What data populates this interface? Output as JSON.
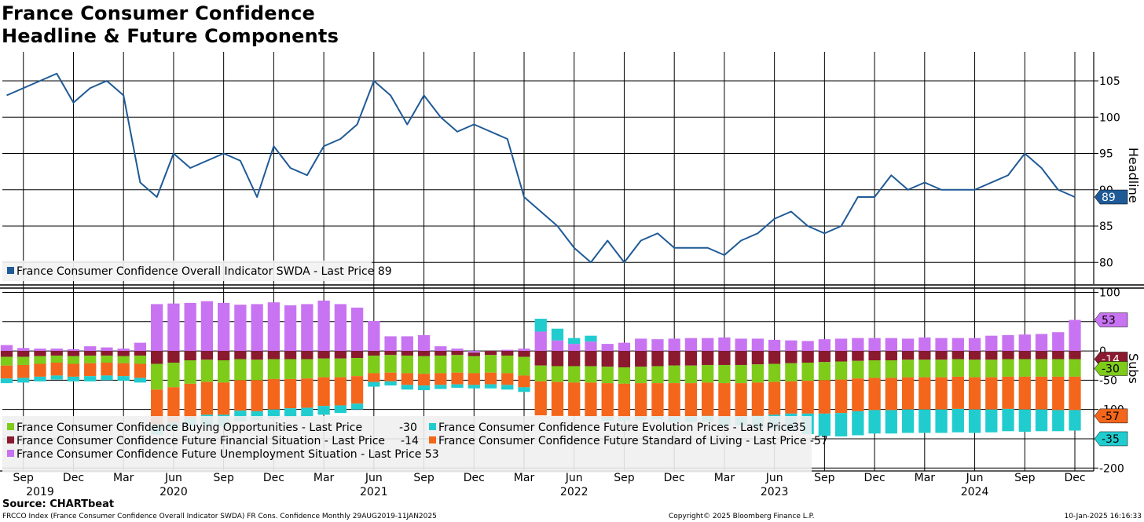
{
  "title_line1": "France Consumer Confidence",
  "title_line2": "Headline & Future Components",
  "source": "Source: CHARTbeat",
  "footer_left": "FRCCO Index (France Consumer Confidence Overall Indicator SWDA) FR Cons. Confidence  Monthly 29AUG2019-11JAN2025",
  "footer_center": "Copyright© 2025 Bloomberg Finance L.P.",
  "footer_right": "10-Jan-2025 16:16:33",
  "chart_data": [
    {
      "type": "line",
      "ylabel": "Headline",
      "ylim": [
        77,
        109
      ],
      "yticks": [
        80,
        85,
        90,
        95,
        100,
        105
      ],
      "x_start": "2019-08",
      "series": [
        {
          "name": "France Consumer Confidence Overall Indicator SWDA",
          "legend": "France Consumer Confidence Overall Indicator SWDA - Last Price 89",
          "last": "89",
          "color": "#1f5a96",
          "values": [
            103,
            104,
            105,
            106,
            102,
            104,
            105,
            103,
            91,
            89,
            95,
            93,
            94,
            95,
            94,
            89,
            96,
            93,
            92,
            96,
            97,
            99,
            105,
            103,
            99,
            103,
            100,
            98,
            99,
            98,
            97,
            89,
            87,
            85,
            82,
            80,
            83,
            80,
            83,
            84,
            82,
            82,
            82,
            81,
            83,
            84,
            86,
            87,
            85,
            84,
            85,
            89,
            89,
            92,
            90,
            91,
            90,
            90,
            90,
            91,
            92,
            95,
            93,
            90,
            89
          ]
        }
      ]
    },
    {
      "type": "bar",
      "stacked": true,
      "ylabel": "Subs",
      "ylim": [
        -205,
        106
      ],
      "yticks": [
        100,
        50,
        0,
        -50,
        -100,
        -150,
        -200
      ],
      "x_start": "2019-08",
      "series": [
        {
          "name": "France Consumer Confidence Future Unemployment Situation",
          "legend": "France Consumer Confidence Future Unemployment Situation - Last Price 53",
          "last": "53",
          "color": "#c874f2",
          "values": [
            10,
            5,
            4,
            4,
            3,
            8,
            6,
            4,
            14,
            80,
            81,
            82,
            85,
            82,
            79,
            80,
            83,
            78,
            80,
            86,
            80,
            74,
            51,
            25,
            25,
            27,
            8,
            4,
            -3,
            0,
            2,
            4,
            33,
            18,
            12,
            16,
            12,
            14,
            21,
            20,
            21,
            22,
            22,
            23,
            21,
            21,
            19,
            18,
            17,
            20,
            21,
            22,
            22,
            22,
            21,
            23,
            22,
            22,
            22,
            26,
            27,
            28,
            29,
            32,
            53
          ]
        },
        {
          "name": "France Consumer Confidence Future Financial Situation",
          "legend": "France Consumer Confidence Future Financial Situation - Last Price",
          "last": "-14",
          "color": "#8b1a2f",
          "values": [
            -10,
            -10,
            -9,
            -8,
            -9,
            -8,
            -8,
            -9,
            -8,
            -22,
            -20,
            -16,
            -15,
            -16,
            -14,
            -15,
            -14,
            -14,
            -14,
            -13,
            -13,
            -12,
            -8,
            -7,
            -8,
            -9,
            -8,
            -7,
            -6,
            -7,
            -8,
            -10,
            -25,
            -26,
            -26,
            -26,
            -27,
            -28,
            -27,
            -26,
            -25,
            -25,
            -24,
            -24,
            -24,
            -23,
            -22,
            -21,
            -20,
            -19,
            -18,
            -17,
            -16,
            -16,
            -15,
            -15,
            -15,
            -14,
            -15,
            -15,
            -14,
            -14,
            -14,
            -14,
            -14
          ]
        },
        {
          "name": "France Consumer Confidence Buying Opportunities",
          "legend": "France Consumer Confidence Buying Opportunities - Last Price",
          "last": "-30",
          "color": "#7ecb1a",
          "values": [
            -15,
            -14,
            -13,
            -12,
            -13,
            -13,
            -12,
            -12,
            -14,
            -44,
            -42,
            -40,
            -38,
            -38,
            -36,
            -35,
            -34,
            -34,
            -33,
            -32,
            -32,
            -31,
            -30,
            -30,
            -30,
            -30,
            -30,
            -30,
            -29,
            -30,
            -30,
            -32,
            -27,
            -27,
            -28,
            -28,
            -28,
            -28,
            -28,
            -29,
            -30,
            -30,
            -30,
            -31,
            -31,
            -31,
            -31,
            -31,
            -31,
            -31,
            -31,
            -30,
            -30,
            -30,
            -30,
            -30,
            -30,
            -30,
            -30,
            -30,
            -30,
            -30,
            -30,
            -30,
            -30
          ]
        },
        {
          "name": "France Consumer Confidence Future Standard of Living",
          "legend": "France Consumer Confidence Future Standard of Living - Last Price",
          "last": "-57",
          "color": "#f4661b",
          "values": [
            -22,
            -22,
            -22,
            -22,
            -22,
            -22,
            -22,
            -22,
            -24,
            -60,
            -60,
            -58,
            -56,
            -55,
            -52,
            -53,
            -52,
            -50,
            -50,
            -49,
            -48,
            -47,
            -15,
            -15,
            -20,
            -20,
            -20,
            -20,
            -20,
            -20,
            -20,
            -20,
            -58,
            -58,
            -57,
            -58,
            -59,
            -58,
            -58,
            -57,
            -57,
            -57,
            -57,
            -58,
            -57,
            -57,
            -56,
            -55,
            -56,
            -57,
            -57,
            -56,
            -55,
            -55,
            -55,
            -55,
            -55,
            -55,
            -55,
            -55,
            -55,
            -56,
            -56,
            -57,
            -57
          ]
        },
        {
          "name": "France Consumer Confidence Future Evolution Prices",
          "legend": "France Consumer Confidence Future Evolution Prices - Last Price",
          "last": "-35",
          "color": "#21cccf",
          "values": [
            -8,
            -8,
            -8,
            -7,
            -8,
            -9,
            -8,
            -8,
            -8,
            -17,
            -13,
            -15,
            -18,
            -20,
            -18,
            -15,
            -16,
            -15,
            -15,
            -15,
            -13,
            -10,
            -8,
            -7,
            -8,
            -8,
            -7,
            -6,
            -6,
            -7,
            -8,
            -8,
            22,
            20,
            10,
            10,
            -5,
            -5,
            -5,
            -5,
            -10,
            -10,
            -10,
            -15,
            -15,
            -20,
            -25,
            -30,
            -35,
            -38,
            -40,
            -41,
            -40,
            -40,
            -40,
            -40,
            -40,
            -40,
            -40,
            -39,
            -38,
            -38,
            -37,
            -36,
            -35
          ]
        }
      ]
    }
  ],
  "x_axis": {
    "months": [
      {
        "label": "Sep",
        "index": 1
      },
      {
        "label": "Dec",
        "index": 4
      },
      {
        "label": "Mar",
        "index": 7
      },
      {
        "label": "Jun",
        "index": 10
      },
      {
        "label": "Sep",
        "index": 13
      },
      {
        "label": "Dec",
        "index": 16
      },
      {
        "label": "Mar",
        "index": 19
      },
      {
        "label": "Jun",
        "index": 22
      },
      {
        "label": "Sep",
        "index": 25
      },
      {
        "label": "Dec",
        "index": 28
      },
      {
        "label": "Mar",
        "index": 31
      },
      {
        "label": "Jun",
        "index": 34
      },
      {
        "label": "Sep",
        "index": 37
      },
      {
        "label": "Dec",
        "index": 40
      },
      {
        "label": "Mar",
        "index": 43
      },
      {
        "label": "Jun",
        "index": 46
      },
      {
        "label": "Sep",
        "index": 49
      },
      {
        "label": "Dec",
        "index": 52
      },
      {
        "label": "Mar",
        "index": 55
      },
      {
        "label": "Jun",
        "index": 58
      },
      {
        "label": "Sep",
        "index": 61
      },
      {
        "label": "Dec",
        "index": 64
      }
    ],
    "years": [
      {
        "label": "2019",
        "index": 2
      },
      {
        "label": "2020",
        "index": 10
      },
      {
        "label": "2021",
        "index": 22
      },
      {
        "label": "2022",
        "index": 34
      },
      {
        "label": "2023",
        "index": 46
      },
      {
        "label": "2024",
        "index": 58
      }
    ]
  }
}
